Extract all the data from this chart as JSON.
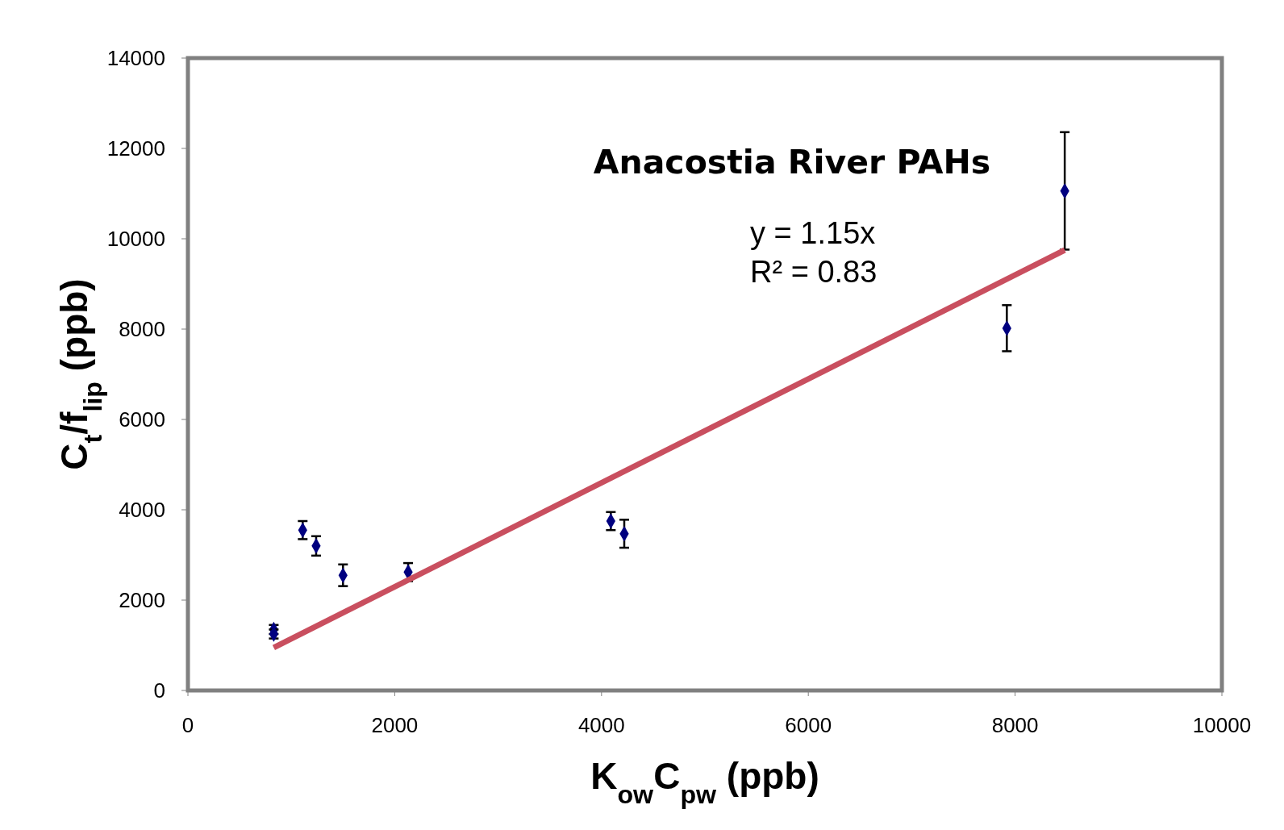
{
  "chart_data": {
    "type": "scatter",
    "title": "Anacostia River PAHs",
    "xlabel": "K$_{ow}$C$_{pw}$ (ppb)",
    "ylabel": "C$_{t}$/f$_{lip}$ (ppb)",
    "annotations": [
      "y = 1.15x",
      "R² = 0.83"
    ],
    "xlim": [
      0,
      10000
    ],
    "xticks": [
      0,
      2000,
      4000,
      6000,
      8000,
      10000
    ],
    "ylim": [
      0,
      14000
    ],
    "yticks": [
      0,
      2000,
      4000,
      6000,
      8000,
      10000,
      12000,
      14000
    ],
    "series": [
      {
        "color": "#000080",
        "marker": "diamond",
        "x": [
          830,
          830,
          1110,
          1240,
          1500,
          2130,
          4090,
          4220,
          7920,
          8480
        ],
        "values": [
          1350,
          1250,
          3550,
          3200,
          2550,
          2620,
          3750,
          3470,
          8020,
          11060
        ],
        "errors": [
          100,
          100,
          200,
          215,
          240,
          200,
          200,
          310,
          510,
          1300
        ]
      },
      {
        "type": "line",
        "color": "#c94f5f",
        "marker": "none",
        "line_style": "solid",
        "x": [
          830,
          8480
        ],
        "values": [
          950,
          9750
        ]
      }
    ]
  }
}
